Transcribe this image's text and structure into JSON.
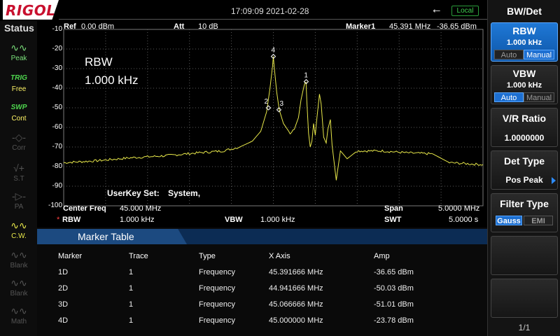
{
  "brand": "RIGOL",
  "topbar": {
    "datetime": "17:09:09 2021-02-28",
    "usb_icon": "usb-icon",
    "local_label": "Local"
  },
  "status": {
    "title": "Status",
    "items": [
      {
        "icon": "peak-icon",
        "label": "Peak"
      },
      {
        "icon_text": "TRIG",
        "label": "Free"
      },
      {
        "icon_text": "SWP",
        "label": "Cont"
      },
      {
        "icon": "corr-icon",
        "label": "Corr"
      },
      {
        "icon": "st-icon",
        "label": "S.T"
      },
      {
        "icon": "pa-icon",
        "label": "PA"
      },
      {
        "icon": "cw-icon",
        "label": "C.W."
      },
      {
        "icon": "blank-icon",
        "label": "Blank"
      },
      {
        "icon": "blank-icon",
        "label": "Blank"
      },
      {
        "icon": "math-icon",
        "label": "Math"
      }
    ]
  },
  "header": {
    "ref_label": "Ref",
    "ref_value": "0.00 dBm",
    "att_label": "Att",
    "att_value": "10 dB",
    "marker_label": "Marker1",
    "marker_freq": "45.391 MHz",
    "marker_amp": "-36.65 dBm"
  },
  "overlay": {
    "line1": "RBW",
    "line2": "1.000 kHz",
    "userkey_label": "UserKey Set:",
    "userkey_value": "System,"
  },
  "chart_data": {
    "type": "line",
    "ylim": [
      -100,
      -10
    ],
    "y_ticks": [
      "-10",
      "-20",
      "-30",
      "-40",
      "-50",
      "-60",
      "-70",
      "-80",
      "-90",
      "-100"
    ],
    "x_range_mhz": [
      42.5,
      47.5
    ],
    "trace_color": "#e8e84a",
    "series": [
      {
        "x": [
          42.5,
          42.9,
          43.3,
          43.7,
          44.1,
          44.4,
          44.6,
          44.75,
          44.85,
          44.92,
          44.96,
          44.99,
          45.0,
          45.01,
          45.04,
          45.07,
          45.12,
          45.2,
          45.25,
          45.3,
          45.33,
          45.36,
          45.38,
          45.39,
          45.4,
          45.42,
          45.44,
          45.46,
          45.48,
          45.5,
          45.52,
          45.55,
          45.57,
          45.6,
          45.63,
          45.65,
          45.68,
          45.7,
          45.75,
          45.8,
          45.88,
          46.0,
          46.3,
          46.6,
          46.9,
          47.1,
          47.3,
          47.5
        ],
        "y": [
          -78,
          -77,
          -75.5,
          -74.5,
          -73,
          -72,
          -70,
          -67,
          -62,
          -52,
          -40,
          -29,
          -23.8,
          -29,
          -42,
          -51,
          -58,
          -63,
          -61,
          -55,
          -46,
          -40,
          -36.65,
          -37,
          -47,
          -63,
          -70,
          -67,
          -58,
          -64,
          -55,
          -43,
          -48,
          -65,
          -68,
          -61,
          -56,
          -69,
          -87,
          -72,
          -76,
          -72,
          -72,
          -73,
          -73.5,
          -78,
          -78.5,
          -79
        ]
      }
    ],
    "markers": [
      {
        "label": "1",
        "x": 45.391666,
        "y": -36.65
      },
      {
        "label": "2",
        "x": 44.941666,
        "y": -50.03
      },
      {
        "label": "3",
        "x": 45.066666,
        "y": -51.01
      },
      {
        "label": "4",
        "x": 45.0,
        "y": -23.78
      }
    ]
  },
  "info": {
    "center_label": "Center Freq",
    "center_value": "45.000 MHz",
    "span_label": "Span",
    "span_value": "5.0000 MHz",
    "rbw_star": "*",
    "rbw_label": "RBW",
    "rbw_value": "1.000 kHz",
    "vbw_label": "VBW",
    "vbw_value": "1.000 kHz",
    "swt_label": "SWT",
    "swt_value": "5.0000 s"
  },
  "marker_table": {
    "title": "Marker Table",
    "columns": [
      "Marker",
      "Trace",
      "Type",
      "X Axis",
      "Amp"
    ],
    "rows": [
      [
        "1D",
        "1",
        "Frequency",
        "45.391666 MHz",
        "-36.65 dBm"
      ],
      [
        "2D",
        "1",
        "Frequency",
        "44.941666 MHz",
        "-50.03 dBm"
      ],
      [
        "3D",
        "1",
        "Frequency",
        "45.066666 MHz",
        "-51.01 dBm"
      ],
      [
        "4D",
        "1",
        "Frequency",
        "45.000000 MHz",
        "-23.78 dBm"
      ]
    ]
  },
  "menu": {
    "title": "BW/Det",
    "rbw": {
      "title": "RBW",
      "value": "1.000 kHz",
      "auto": "Auto",
      "manual": "Manual"
    },
    "vbw": {
      "title": "VBW",
      "value": "1.000 kHz",
      "auto": "Auto",
      "manual": "Manual"
    },
    "vr": {
      "title": "V/R Ratio",
      "value": "1.0000000"
    },
    "det": {
      "title": "Det Type",
      "value": "Pos Peak"
    },
    "filter": {
      "title": "Filter Type",
      "gauss": "Gauss",
      "emi": "EMI"
    },
    "page": "1/1"
  }
}
